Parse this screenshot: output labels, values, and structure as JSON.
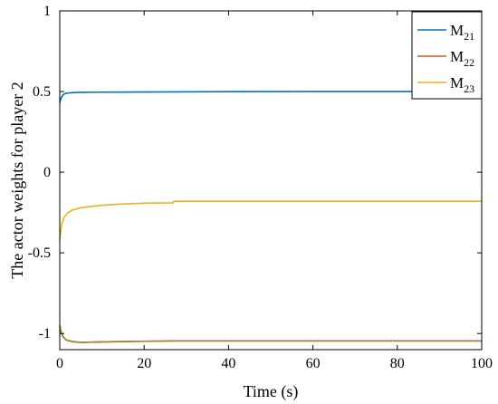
{
  "chart_data": {
    "type": "line",
    "xlabel": "Time (s)",
    "ylabel": "The actor weights for player 2",
    "xlim": [
      0,
      100
    ],
    "ylim": [
      -1.1,
      1
    ],
    "xticks": [
      0,
      20,
      40,
      60,
      80,
      100
    ],
    "xtick_labels": [
      "0",
      "20",
      "40",
      "60",
      "80",
      "100"
    ],
    "yticks": [
      1,
      0.5,
      0,
      -0.5,
      -1
    ],
    "ytick_labels": [
      "1",
      "0.5",
      "0",
      "-0.5",
      "-1"
    ],
    "grid": false,
    "legend_position": "top-right",
    "series": [
      {
        "name": "M",
        "name_subscript": "21",
        "color": "#0072BD",
        "points": [
          [
            0,
            0.43
          ],
          [
            0.3,
            0.46
          ],
          [
            0.8,
            0.48
          ],
          [
            1.5,
            0.49
          ],
          [
            3,
            0.493
          ],
          [
            5,
            0.495
          ],
          [
            10,
            0.496
          ],
          [
            20,
            0.497
          ],
          [
            27,
            0.498
          ],
          [
            40,
            0.499
          ],
          [
            60,
            0.5
          ],
          [
            80,
            0.5
          ],
          [
            100,
            0.5
          ]
        ]
      },
      {
        "name": "M",
        "name_subscript": "22",
        "color": "#D95319",
        "points": [
          [
            0,
            -0.95
          ],
          [
            0.3,
            -0.99
          ],
          [
            0.8,
            -1.02
          ],
          [
            1.5,
            -1.04
          ],
          [
            3,
            -1.05
          ],
          [
            5,
            -1.055
          ],
          [
            10,
            -1.052
          ],
          [
            20,
            -1.048
          ],
          [
            27,
            -1.046
          ],
          [
            40,
            -1.046
          ],
          [
            60,
            -1.046
          ],
          [
            80,
            -1.046
          ],
          [
            100,
            -1.046
          ]
        ]
      },
      {
        "name": "M",
        "name_subscript": "23",
        "color": "#EDB120",
        "points": [
          [
            0,
            -0.42
          ],
          [
            0.4,
            -0.33
          ],
          [
            1,
            -0.28
          ],
          [
            2,
            -0.25
          ],
          [
            3,
            -0.235
          ],
          [
            5,
            -0.22
          ],
          [
            10,
            -0.205
          ],
          [
            15,
            -0.197
          ],
          [
            20,
            -0.192
          ],
          [
            26.9,
            -0.19
          ],
          [
            27,
            -0.18
          ],
          [
            40,
            -0.18
          ],
          [
            60,
            -0.18
          ],
          [
            80,
            -0.18
          ],
          [
            100,
            -0.18
          ]
        ]
      }
    ],
    "overlay_series": {
      "color": "#9E7F2A",
      "points": [
        [
          0,
          -0.95
        ],
        [
          0.3,
          -0.99
        ],
        [
          0.8,
          -1.02
        ],
        [
          1.5,
          -1.04
        ],
        [
          3,
          -1.05
        ],
        [
          5,
          -1.055
        ],
        [
          10,
          -1.052
        ],
        [
          20,
          -1.048
        ],
        [
          27,
          -1.046
        ],
        [
          40,
          -1.046
        ],
        [
          60,
          -1.046
        ],
        [
          80,
          -1.046
        ],
        [
          100,
          -1.046
        ]
      ]
    }
  }
}
